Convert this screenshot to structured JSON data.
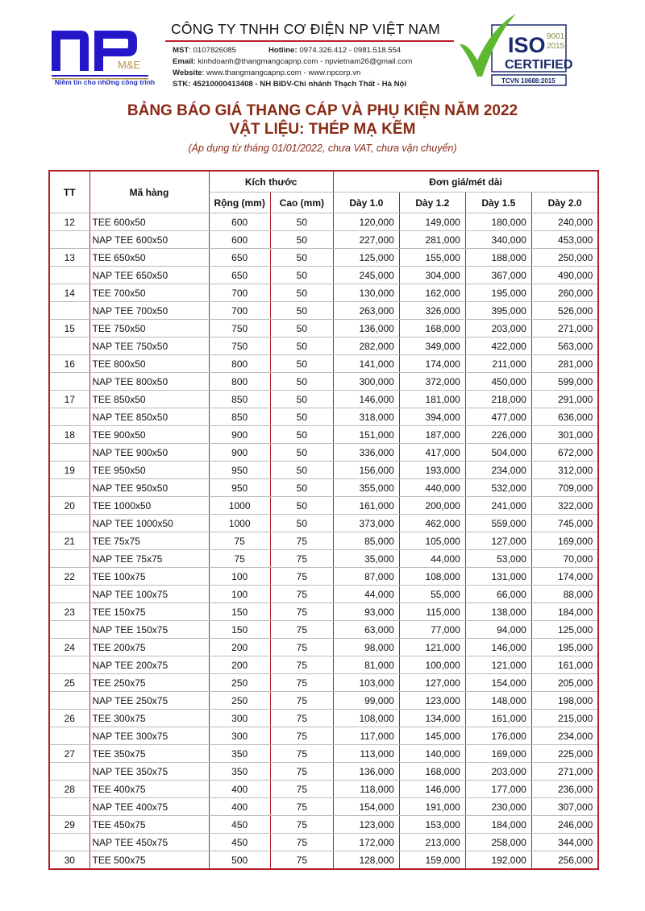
{
  "header": {
    "logo_text": "NP M&E",
    "tagline": "Niềm tin cho những công trình",
    "company": "CÔNG TY TNHH CƠ ĐIỆN NP VIỆT NAM",
    "mst_label": "MST",
    "mst": ": 0107826085",
    "hotline_label": "Hotline:",
    "hotline": " 0974.326.412 - 0981.518.554",
    "email_label": "Email:",
    "email": " kinhdoanh@thangmangcapnp.com - npvietnam26@gmail.com",
    "website_label": "Website",
    "website": ": www.thangmangcapnp.com - www.npcorp.vn",
    "stk": "STK: 45210000413408 - NH BIDV-Chi nhánh Thạch Thất - Hà Nội",
    "iso": {
      "iso": "ISO",
      "year1": "9001",
      "year2": "2015",
      "certified": "CERTIFIED",
      "tcvn": "TCVN 10688:2015"
    }
  },
  "title": {
    "line1": "BẢNG BÁO GIÁ THANG CÁP VÀ PHỤ KIỆN NĂM 2022",
    "line2": "VẬT LIỆU: THÉP MẠ KẼM",
    "note": "(Áp dụng từ tháng 01/01/2022, chưa VAT, chưa vận chuyển)"
  },
  "table": {
    "headers": {
      "tt": "TT",
      "code": "Mã hàng",
      "size": "Kích thước",
      "price": "Đơn giá/mét dài",
      "width": "Rộng (mm)",
      "height": "Cao (mm)",
      "d10": "Dày 1.0",
      "d12": "Dày 1.2",
      "d15": "Dày 1.5",
      "d20": "Dày 2.0"
    },
    "rows": [
      [
        "12",
        "TEE 600x50",
        "600",
        "50",
        "120,000",
        "149,000",
        "180,000",
        "240,000"
      ],
      [
        "",
        "NAP TEE 600x50",
        "600",
        "50",
        "227,000",
        "281,000",
        "340,000",
        "453,000"
      ],
      [
        "13",
        "TEE 650x50",
        "650",
        "50",
        "125,000",
        "155,000",
        "188,000",
        "250,000"
      ],
      [
        "",
        "NAP TEE 650x50",
        "650",
        "50",
        "245,000",
        "304,000",
        "367,000",
        "490,000"
      ],
      [
        "14",
        "TEE 700x50",
        "700",
        "50",
        "130,000",
        "162,000",
        "195,000",
        "260,000"
      ],
      [
        "",
        "NAP TEE 700x50",
        "700",
        "50",
        "263,000",
        "326,000",
        "395,000",
        "526,000"
      ],
      [
        "15",
        "TEE 750x50",
        "750",
        "50",
        "136,000",
        "168,000",
        "203,000",
        "271,000"
      ],
      [
        "",
        "NAP TEE 750x50",
        "750",
        "50",
        "282,000",
        "349,000",
        "422,000",
        "563,000"
      ],
      [
        "16",
        "TEE 800x50",
        "800",
        "50",
        "141,000",
        "174,000",
        "211,000",
        "281,000"
      ],
      [
        "",
        "NAP TEE 800x50",
        "800",
        "50",
        "300,000",
        "372,000",
        "450,000",
        "599,000"
      ],
      [
        "17",
        "TEE 850x50",
        "850",
        "50",
        "146,000",
        "181,000",
        "218,000",
        "291,000"
      ],
      [
        "",
        "NAP TEE 850x50",
        "850",
        "50",
        "318,000",
        "394,000",
        "477,000",
        "636,000"
      ],
      [
        "18",
        "TEE 900x50",
        "900",
        "50",
        "151,000",
        "187,000",
        "226,000",
        "301,000"
      ],
      [
        "",
        "NAP TEE 900x50",
        "900",
        "50",
        "336,000",
        "417,000",
        "504,000",
        "672,000"
      ],
      [
        "19",
        "TEE 950x50",
        "950",
        "50",
        "156,000",
        "193,000",
        "234,000",
        "312,000"
      ],
      [
        "",
        "NAP TEE 950x50",
        "950",
        "50",
        "355,000",
        "440,000",
        "532,000",
        "709,000"
      ],
      [
        "20",
        "TEE 1000x50",
        "1000",
        "50",
        "161,000",
        "200,000",
        "241,000",
        "322,000"
      ],
      [
        "",
        "NAP TEE 1000x50",
        "1000",
        "50",
        "373,000",
        "462,000",
        "559,000",
        "745,000"
      ],
      [
        "21",
        "TEE 75x75",
        "75",
        "75",
        "85,000",
        "105,000",
        "127,000",
        "169,000"
      ],
      [
        "",
        "NAP TEE 75x75",
        "75",
        "75",
        "35,000",
        "44,000",
        "53,000",
        "70,000"
      ],
      [
        "22",
        "TEE 100x75",
        "100",
        "75",
        "87,000",
        "108,000",
        "131,000",
        "174,000"
      ],
      [
        "",
        "NAP TEE 100x75",
        "100",
        "75",
        "44,000",
        "55,000",
        "66,000",
        "88,000"
      ],
      [
        "23",
        "TEE 150x75",
        "150",
        "75",
        "93,000",
        "115,000",
        "138,000",
        "184,000"
      ],
      [
        "",
        "NAP TEE 150x75",
        "150",
        "75",
        "63,000",
        "77,000",
        "94,000",
        "125,000"
      ],
      [
        "24",
        "TEE 200x75",
        "200",
        "75",
        "98,000",
        "121,000",
        "146,000",
        "195,000"
      ],
      [
        "",
        "NAP TEE 200x75",
        "200",
        "75",
        "81,000",
        "100,000",
        "121,000",
        "161,000"
      ],
      [
        "25",
        "TEE 250x75",
        "250",
        "75",
        "103,000",
        "127,000",
        "154,000",
        "205,000"
      ],
      [
        "",
        "NAP TEE 250x75",
        "250",
        "75",
        "99,000",
        "123,000",
        "148,000",
        "198,000"
      ],
      [
        "26",
        "TEE 300x75",
        "300",
        "75",
        "108,000",
        "134,000",
        "161,000",
        "215,000"
      ],
      [
        "",
        "NAP TEE 300x75",
        "300",
        "75",
        "117,000",
        "145,000",
        "176,000",
        "234,000"
      ],
      [
        "27",
        "TEE 350x75",
        "350",
        "75",
        "113,000",
        "140,000",
        "169,000",
        "225,000"
      ],
      [
        "",
        "NAP TEE 350x75",
        "350",
        "75",
        "136,000",
        "168,000",
        "203,000",
        "271,000"
      ],
      [
        "28",
        "TEE 400x75",
        "400",
        "75",
        "118,000",
        "146,000",
        "177,000",
        "236,000"
      ],
      [
        "",
        "NAP TEE 400x75",
        "400",
        "75",
        "154,000",
        "191,000",
        "230,000",
        "307,000"
      ],
      [
        "29",
        "TEE 450x75",
        "450",
        "75",
        "123,000",
        "153,000",
        "184,000",
        "246,000"
      ],
      [
        "",
        "NAP TEE 450x75",
        "450",
        "75",
        "172,000",
        "213,000",
        "258,000",
        "344,000"
      ],
      [
        "30",
        "TEE 500x75",
        "500",
        "75",
        "128,000",
        "159,000",
        "192,000",
        "256,000"
      ]
    ]
  }
}
